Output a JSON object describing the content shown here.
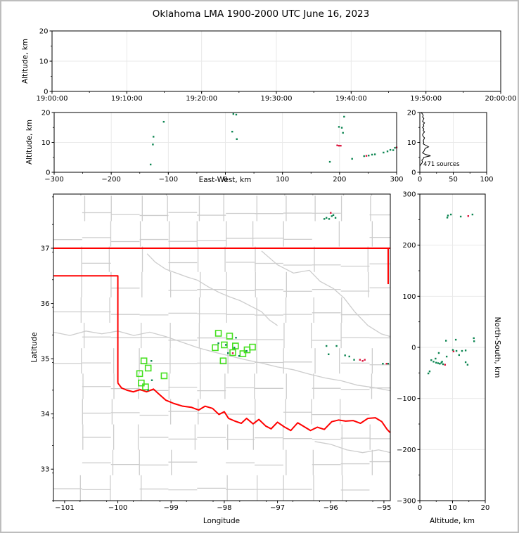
{
  "title": "Oklahoma LMA 1900-2000 UTC June 16, 2023",
  "colors": {
    "source_green": "#0d8652",
    "source_red": "#dc143c",
    "station_green": "#45e01f",
    "state_border": "#ff0000",
    "county_line": "#cdcdcd",
    "grid_line": "#e9e9e9",
    "histogram_line": "#000000",
    "frame": "#000000"
  },
  "chart_data": [
    {
      "id": "time_altitude",
      "type": "scatter",
      "xlabel": "",
      "ylabel": "Altitude, km",
      "xlim": [
        0,
        3600
      ],
      "ylim": [
        0,
        20
      ],
      "xticks": [
        0,
        600,
        1200,
        1800,
        2400,
        3000,
        3600
      ],
      "xtick_labels": [
        "19:00:00",
        "19:10:00",
        "19:20:00",
        "19:30:00",
        "19:40:00",
        "19:50:00",
        "20:00:00"
      ],
      "yticks": [
        0,
        10,
        20
      ],
      "xminor": 300,
      "yminor": 5,
      "grid": true,
      "series": [
        {
          "name": "sources-green",
          "color_key": "source_green",
          "points": []
        },
        {
          "name": "sources-red",
          "color_key": "source_red",
          "points": []
        }
      ]
    },
    {
      "id": "ew_altitude",
      "type": "scatter",
      "xlabel": "East-West, km",
      "ylabel": "Altitude, km",
      "xlim": [
        -300,
        300
      ],
      "ylim": [
        0,
        20
      ],
      "xticks": [
        -300,
        -200,
        -100,
        0,
        100,
        200,
        300
      ],
      "yticks": [
        0,
        10,
        20
      ],
      "xminor": 50,
      "yminor": 5,
      "grid": true,
      "series": [
        {
          "name": "sources-green",
          "color_key": "source_green",
          "points": [
            [
              -126,
              11.9
            ],
            [
              -127,
              9.3
            ],
            [
              -131,
              2.6
            ],
            [
              -108,
              16.9
            ],
            [
              14,
              19.5
            ],
            [
              19,
              19.3
            ],
            [
              12,
              13.6
            ],
            [
              20,
              11.1
            ],
            [
              183,
              3.5
            ],
            [
              199,
              15.2
            ],
            [
              204,
              14.9
            ],
            [
              206,
              13.2
            ],
            [
              208,
              18.6
            ],
            [
              222,
              4.5
            ],
            [
              243,
              5.4
            ],
            [
              251,
              5.6
            ],
            [
              257,
              5.9
            ],
            [
              262,
              6.0
            ],
            [
              277,
              6.6
            ],
            [
              284,
              7.0
            ],
            [
              289,
              7.5
            ],
            [
              294,
              7.4
            ],
            [
              297,
              8.2
            ]
          ]
        },
        {
          "name": "sources-red",
          "color_key": "source_red",
          "points": [
            [
              196,
              9.0
            ],
            [
              199,
              8.9
            ],
            [
              202,
              8.9
            ],
            [
              247,
              5.5
            ],
            [
              300,
              8.3
            ]
          ]
        }
      ]
    },
    {
      "id": "altitude_histogram",
      "type": "line",
      "annotation": "471 sources",
      "xlabel": "",
      "ylabel": "",
      "xlim": [
        0,
        100
      ],
      "ylim": [
        0,
        20
      ],
      "xticks": [
        0,
        50,
        100
      ],
      "yticks": [
        0,
        10,
        20
      ],
      "xminor": 25,
      "yminor": 5,
      "grid": true,
      "alt_start": 0,
      "alt_step": 0.5,
      "counts": [
        0,
        0,
        0,
        0,
        0,
        1,
        3,
        4,
        3,
        5,
        6,
        16,
        8,
        4,
        6,
        7,
        8,
        13,
        9,
        5,
        6,
        5,
        6,
        7,
        5,
        4,
        5,
        7,
        5,
        6,
        4,
        6,
        5,
        7,
        4,
        5,
        6,
        4,
        5,
        4,
        2
      ]
    },
    {
      "id": "map",
      "type": "scatter",
      "xlabel": "Longitude",
      "ylabel": "Latitude",
      "xlim": [
        -101.21,
        -94.88
      ],
      "ylim": [
        32.43,
        37.98
      ],
      "xticks": [
        -101,
        -100,
        -99,
        -98,
        -97,
        -96,
        -95
      ],
      "yticks": [
        33,
        34,
        35,
        36,
        37
      ],
      "xminor": 0.5,
      "yminor": 0.5,
      "grid": false,
      "stations": [
        [
          -98.11,
          35.46
        ],
        [
          -97.9,
          35.41
        ],
        [
          -98.17,
          35.2
        ],
        [
          -98.0,
          35.25
        ],
        [
          -97.79,
          35.23
        ],
        [
          -97.84,
          35.11
        ],
        [
          -97.57,
          35.16
        ],
        [
          -97.47,
          35.21
        ],
        [
          -97.65,
          35.09
        ],
        [
          -98.02,
          34.96
        ],
        [
          -99.51,
          34.96
        ],
        [
          -99.43,
          34.83
        ],
        [
          -99.59,
          34.73
        ],
        [
          -99.13,
          34.69
        ],
        [
          -99.56,
          34.56
        ],
        [
          -99.48,
          34.49
        ]
      ],
      "series": [
        {
          "name": "sources-green",
          "color_key": "source_green",
          "points": [
            [
              -96.08,
              37.55
            ],
            [
              -96.03,
              37.53
            ],
            [
              -95.98,
              37.58
            ],
            [
              -95.95,
              37.6
            ],
            [
              -95.91,
              37.55
            ],
            [
              -96.12,
              37.53
            ],
            [
              -96.08,
              35.23
            ],
            [
              -95.89,
              35.23
            ],
            [
              -96.04,
              35.08
            ],
            [
              -95.73,
              35.06
            ],
            [
              -95.65,
              35.04
            ],
            [
              -95.56,
              34.98
            ],
            [
              -95.02,
              34.91
            ],
            [
              -94.92,
              34.91
            ],
            [
              -97.78,
              35.38
            ],
            [
              -97.97,
              35.25
            ],
            [
              -98.11,
              35.28
            ],
            [
              -97.81,
              35.2
            ],
            [
              -97.72,
              35.05
            ],
            [
              -97.93,
              35.1
            ],
            [
              -97.58,
              35.14
            ],
            [
              -99.37,
              34.96
            ],
            [
              -99.36,
              34.61
            ],
            [
              -99.43,
              34.43
            ]
          ]
        },
        {
          "name": "sources-red",
          "color_key": "source_red",
          "points": [
            [
              -96.0,
              37.64
            ],
            [
              -95.45,
              34.98
            ],
            [
              -95.4,
              34.96
            ],
            [
              -95.36,
              34.98
            ],
            [
              -94.95,
              34.91
            ],
            [
              -97.84,
              35.1
            ]
          ]
        }
      ],
      "state_border": {
        "kansas": [
          [
            -101.21,
            37
          ],
          [
            -94.88,
            37
          ]
        ],
        "panhandle": [
          [
            -101.21,
            36.5
          ],
          [
            -100,
            36.5
          ],
          [
            -100,
            34.56
          ]
        ],
        "east": [
          [
            -94.92,
            37
          ],
          [
            -94.92,
            36.35
          ]
        ],
        "red_river": [
          [
            -100.0,
            34.56
          ],
          [
            -99.93,
            34.47
          ],
          [
            -99.83,
            34.43
          ],
          [
            -99.71,
            34.4
          ],
          [
            -99.58,
            34.44
          ],
          [
            -99.46,
            34.4
          ],
          [
            -99.33,
            34.45
          ],
          [
            -99.24,
            34.37
          ],
          [
            -99.1,
            34.25
          ],
          [
            -98.95,
            34.19
          ],
          [
            -98.78,
            34.14
          ],
          [
            -98.62,
            34.12
          ],
          [
            -98.48,
            34.07
          ],
          [
            -98.36,
            34.14
          ],
          [
            -98.22,
            34.1
          ],
          [
            -98.1,
            33.99
          ],
          [
            -98.0,
            34.04
          ],
          [
            -97.92,
            33.92
          ],
          [
            -97.8,
            33.87
          ],
          [
            -97.68,
            33.83
          ],
          [
            -97.58,
            33.92
          ],
          [
            -97.46,
            33.82
          ],
          [
            -97.35,
            33.9
          ],
          [
            -97.22,
            33.78
          ],
          [
            -97.12,
            33.73
          ],
          [
            -97.0,
            33.85
          ],
          [
            -96.88,
            33.77
          ],
          [
            -96.75,
            33.7
          ],
          [
            -96.62,
            33.84
          ],
          [
            -96.5,
            33.77
          ],
          [
            -96.38,
            33.7
          ],
          [
            -96.25,
            33.76
          ],
          [
            -96.12,
            33.72
          ],
          [
            -95.98,
            33.86
          ],
          [
            -95.85,
            33.89
          ],
          [
            -95.72,
            33.87
          ],
          [
            -95.58,
            33.88
          ],
          [
            -95.44,
            33.83
          ],
          [
            -95.3,
            33.92
          ],
          [
            -95.16,
            33.93
          ],
          [
            -95.04,
            33.86
          ],
          [
            -94.94,
            33.72
          ],
          [
            -94.88,
            33.66
          ]
        ]
      },
      "rivers": [
        [
          [
            -99.45,
            36.9
          ],
          [
            -99.3,
            36.75
          ],
          [
            -99.1,
            36.62
          ],
          [
            -98.9,
            36.55
          ],
          [
            -98.7,
            36.48
          ],
          [
            -98.5,
            36.42
          ],
          [
            -98.3,
            36.3
          ],
          [
            -98.1,
            36.2
          ],
          [
            -97.9,
            36.12
          ],
          [
            -97.7,
            36.05
          ],
          [
            -97.5,
            35.95
          ],
          [
            -97.3,
            35.85
          ],
          [
            -97.15,
            35.7
          ],
          [
            -97.0,
            35.6
          ]
        ],
        [
          [
            -97.3,
            36.95
          ],
          [
            -97.0,
            36.7
          ],
          [
            -96.7,
            36.55
          ],
          [
            -96.4,
            36.6
          ],
          [
            -96.2,
            36.4
          ],
          [
            -95.95,
            36.27
          ],
          [
            -95.75,
            36.1
          ],
          [
            -95.55,
            35.85
          ],
          [
            -95.3,
            35.6
          ],
          [
            -95.05,
            35.45
          ],
          [
            -94.88,
            35.4
          ]
        ],
        [
          [
            -101.21,
            35.48
          ],
          [
            -100.9,
            35.42
          ],
          [
            -100.6,
            35.5
          ],
          [
            -100.3,
            35.45
          ],
          [
            -100.0,
            35.5
          ],
          [
            -99.7,
            35.42
          ],
          [
            -99.4,
            35.48
          ],
          [
            -99.1,
            35.4
          ],
          [
            -98.8,
            35.3
          ],
          [
            -98.5,
            35.2
          ],
          [
            -98.2,
            35.12
          ],
          [
            -97.9,
            35.05
          ],
          [
            -97.6,
            34.98
          ],
          [
            -97.3,
            34.92
          ],
          [
            -97.0,
            34.85
          ],
          [
            -96.7,
            34.8
          ],
          [
            -96.4,
            34.72
          ],
          [
            -96.1,
            34.65
          ],
          [
            -95.8,
            34.6
          ],
          [
            -95.5,
            34.52
          ],
          [
            -95.2,
            34.48
          ],
          [
            -94.88,
            34.42
          ]
        ],
        [
          [
            -96.3,
            33.5
          ],
          [
            -96.0,
            33.45
          ],
          [
            -95.7,
            33.35
          ],
          [
            -95.4,
            33.3
          ],
          [
            -95.1,
            33.35
          ],
          [
            -94.88,
            33.3
          ]
        ]
      ]
    },
    {
      "id": "ns_altitude",
      "type": "scatter",
      "xlabel": "Altitude, km",
      "ylabel": "North-South, km",
      "xlim": [
        0,
        20
      ],
      "ylim": [
        -300,
        300
      ],
      "xticks": [
        0,
        10,
        20
      ],
      "yticks": [
        -300,
        -200,
        -100,
        0,
        100,
        200,
        300
      ],
      "xminor": 5,
      "yminor": 50,
      "grid": true,
      "series": [
        {
          "name": "sources-green",
          "color_key": "source_green",
          "points": [
            [
              8.6,
              258
            ],
            [
              9.5,
              260
            ],
            [
              8.4,
              254
            ],
            [
              16.1,
              260
            ],
            [
              12.5,
              256
            ],
            [
              8.0,
              13
            ],
            [
              16.6,
              12
            ],
            [
              16.5,
              18
            ],
            [
              11.0,
              15
            ],
            [
              5.8,
              -11
            ],
            [
              10.1,
              -5
            ],
            [
              11.2,
              -7
            ],
            [
              12.9,
              -7
            ],
            [
              14.0,
              -6
            ],
            [
              8.2,
              -18
            ],
            [
              12.0,
              -15
            ],
            [
              3.5,
              -25
            ],
            [
              4.2,
              -28
            ],
            [
              5.0,
              -30
            ],
            [
              5.6,
              -31
            ],
            [
              6.1,
              -32
            ],
            [
              6.6,
              -30
            ],
            [
              7.1,
              -33
            ],
            [
              14.0,
              -29
            ],
            [
              14.6,
              -34
            ],
            [
              2.6,
              -51
            ],
            [
              3.0,
              -47
            ],
            [
              4.8,
              -22
            ],
            [
              6.8,
              -28
            ]
          ]
        },
        {
          "name": "sources-red",
          "color_key": "source_red",
          "points": [
            [
              14.8,
              257
            ],
            [
              10.3,
              -8
            ],
            [
              7.7,
              -34
            ]
          ]
        }
      ]
    }
  ]
}
